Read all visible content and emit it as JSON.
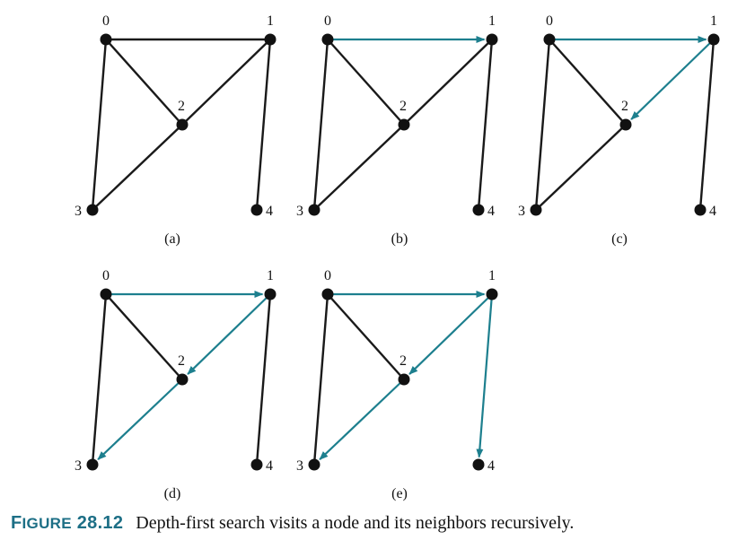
{
  "vertex_labels": [
    "0",
    "1",
    "2",
    "3",
    "4"
  ],
  "edges": [
    [
      0,
      1
    ],
    [
      0,
      2
    ],
    [
      0,
      3
    ],
    [
      1,
      2
    ],
    [
      1,
      4
    ],
    [
      2,
      3
    ]
  ],
  "panels": [
    {
      "label": "(a)",
      "visited_edges": []
    },
    {
      "label": "(b)",
      "visited_edges": [
        [
          0,
          1
        ]
      ]
    },
    {
      "label": "(c)",
      "visited_edges": [
        [
          0,
          1
        ],
        [
          1,
          2
        ]
      ]
    },
    {
      "label": "(d)",
      "visited_edges": [
        [
          0,
          1
        ],
        [
          1,
          2
        ],
        [
          2,
          3
        ]
      ]
    },
    {
      "label": "(e)",
      "visited_edges": [
        [
          0,
          1
        ],
        [
          1,
          2
        ],
        [
          2,
          3
        ],
        [
          1,
          4
        ]
      ]
    }
  ],
  "colors": {
    "plain_edge": "#1a1a1a",
    "visited_edge": "#1d7f8e",
    "node": "#111111",
    "caption_label": "#1d6f86"
  },
  "caption": {
    "label_word": "Figure",
    "label_number": "28.12",
    "text": "Depth-first search visits a node and its neighbors recursively."
  }
}
